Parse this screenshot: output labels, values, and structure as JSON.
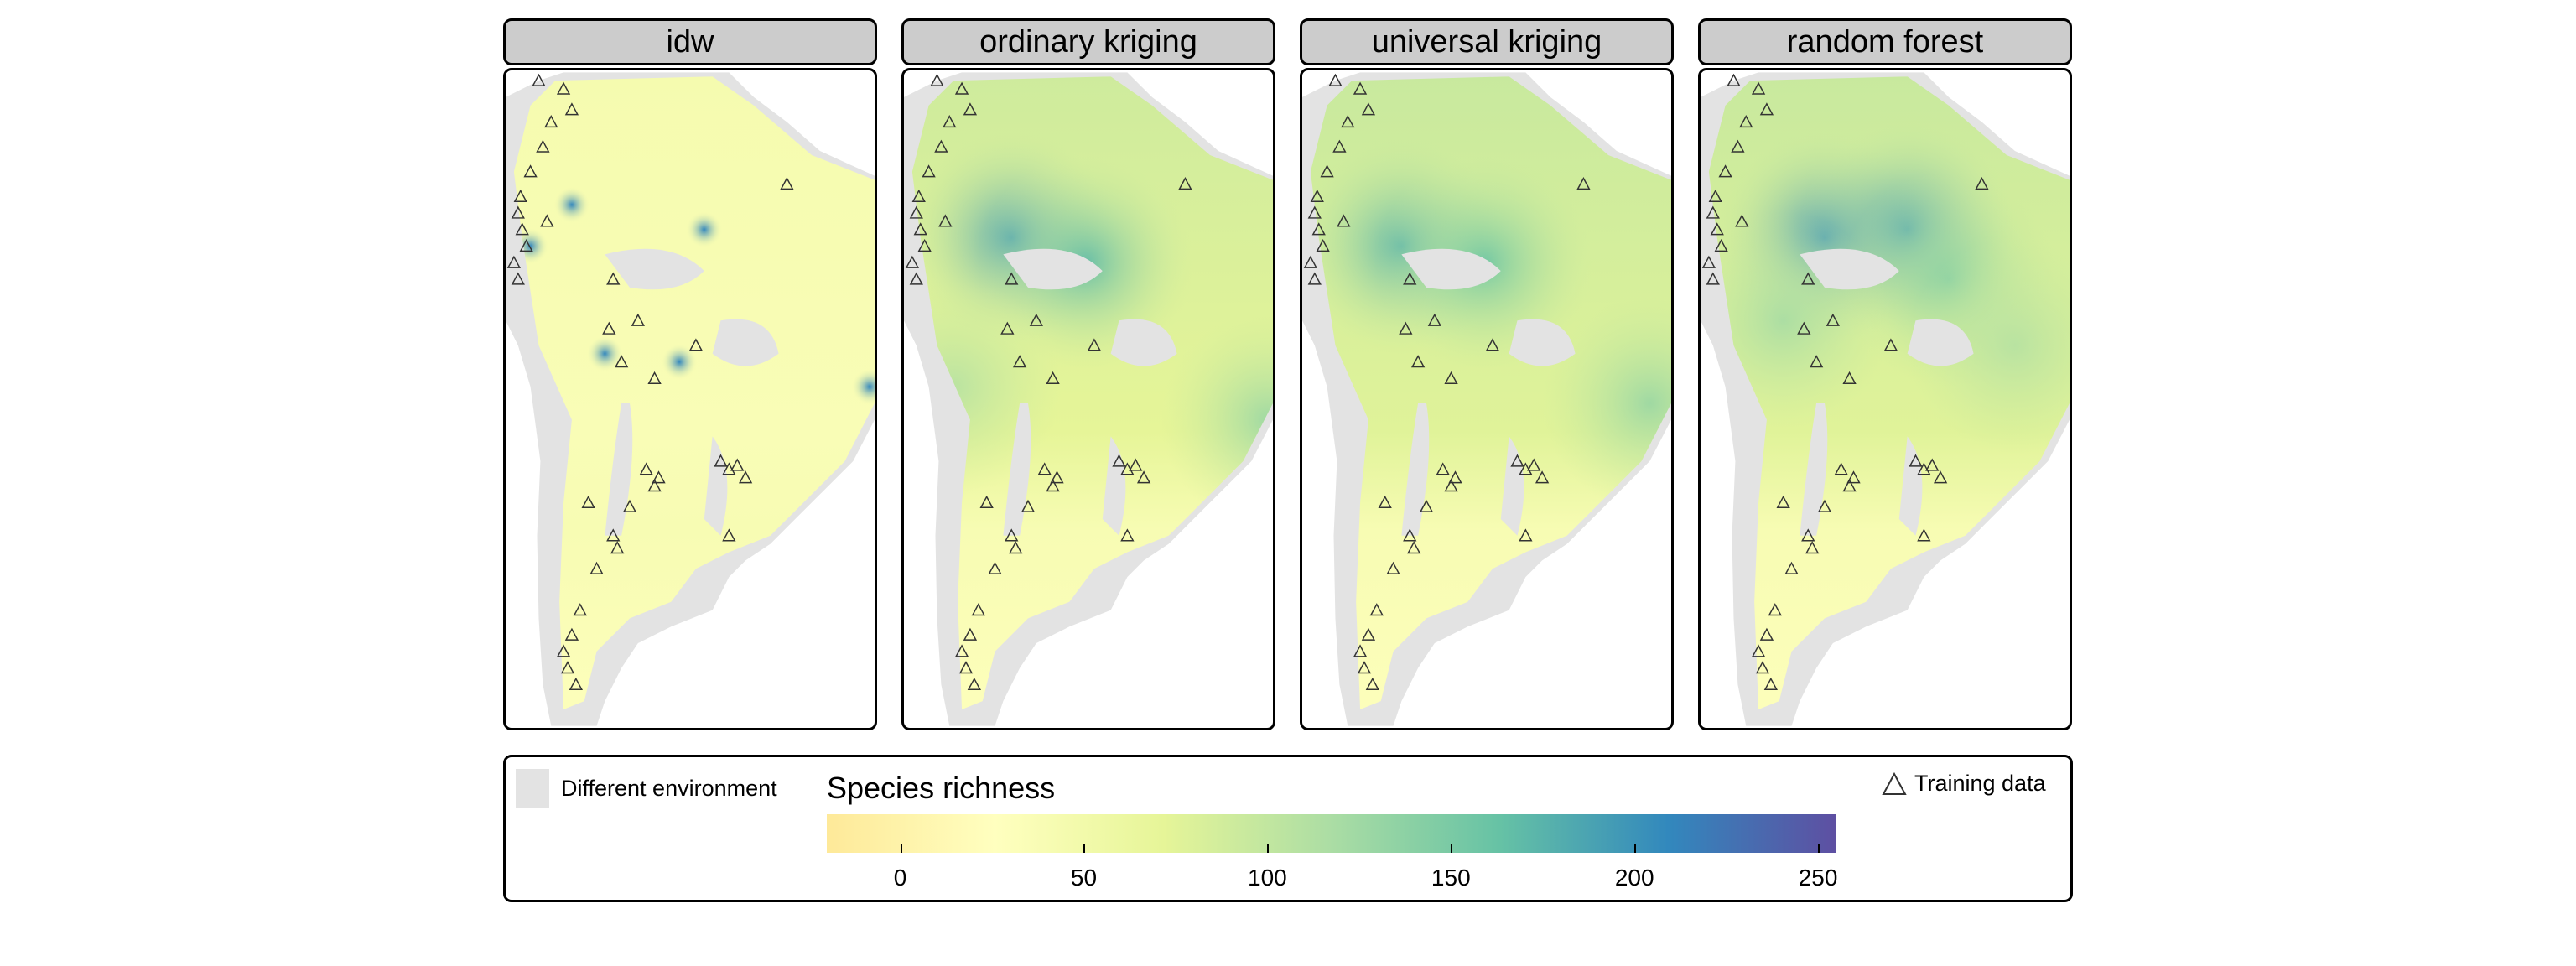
{
  "chart_data": {
    "type": "heatmap",
    "title": "",
    "panels": [
      {
        "label": "idw",
        "mean_richness": 45,
        "max_richness": 210
      },
      {
        "label": "ordinary kriging",
        "mean_richness": 90,
        "max_richness": 195
      },
      {
        "label": "universal kriging",
        "mean_richness": 95,
        "max_richness": 180
      },
      {
        "label": "random forest",
        "mean_richness": 95,
        "max_richness": 200
      }
    ],
    "legend": {
      "mask_label": "Different environment",
      "colorbar_title": "Species richness",
      "colorbar_range": [
        -20,
        255
      ],
      "ticks": [
        "0",
        "50",
        "100",
        "150",
        "200",
        "250"
      ],
      "tick_values": [
        0,
        50,
        100,
        150,
        200,
        250
      ],
      "points_label": "Training data",
      "colors": [
        "#fee999",
        "#ffffbf",
        "#e6f598",
        "#abdda4",
        "#66c2a5",
        "#3288bd",
        "#5e4fa2"
      ]
    },
    "mask_color": "#e3e3e3"
  }
}
